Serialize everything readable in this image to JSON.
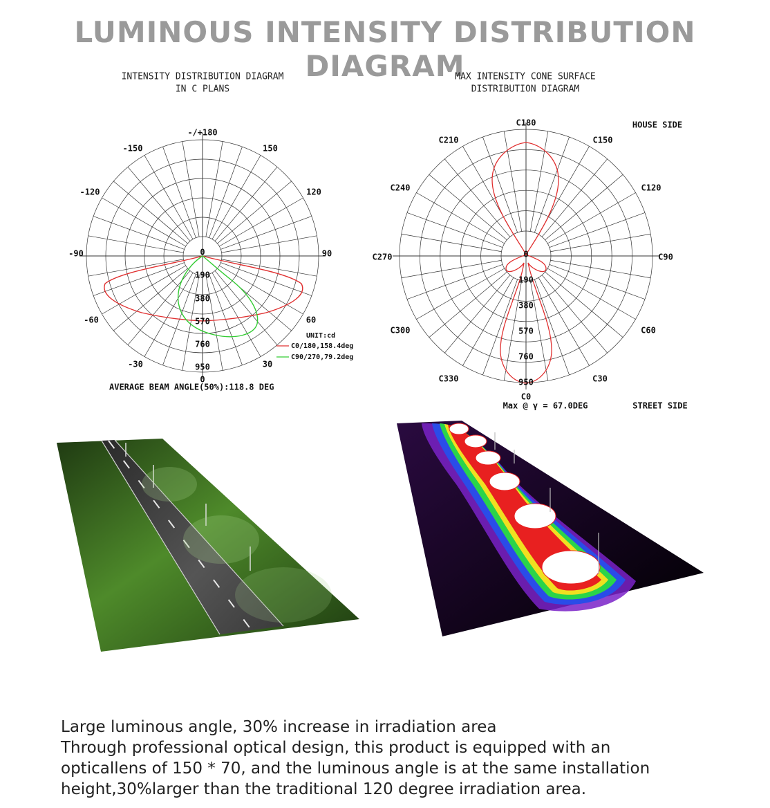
{
  "page_title": "LUMINOUS INTENSITY DISTRIBUTION DIAGRAM",
  "left_diagram": {
    "title_line1": "INTENSITY DISTRIBUTION DIAGRAM",
    "title_line2": "IN C PLANS",
    "angle_labels": {
      "top": "-/+180",
      "m150": "-150",
      "p150": "150",
      "m120": "-120",
      "p120": "120",
      "m90": "-90",
      "p90": "90",
      "m60": "-60",
      "p60": "60",
      "m30": "-30",
      "p30": "30",
      "bottom": "0"
    },
    "ring_labels": [
      "0",
      "190",
      "380",
      "570",
      "760",
      "950"
    ],
    "legend_unit": "UNIT:cd",
    "legend_c0": "C0/180,158.4deg",
    "legend_c90": "C90/270,79.2deg",
    "footer": "AVERAGE BEAM ANGLE(50%):118.8 DEG",
    "colors": {
      "c0": "#e03030",
      "c90": "#33cc33"
    }
  },
  "right_diagram": {
    "title_line1": "MAX INTENSITY CONE SURFACE",
    "title_line2": "DISTRIBUTION DIAGRAM",
    "c_labels": {
      "c180": "C180",
      "c210": "C210",
      "c150": "C150",
      "c240": "C240",
      "c120": "C120",
      "c270": "C270",
      "c90": "C90",
      "c300": "C300",
      "c60": "C60",
      "c330": "C330",
      "c30": "C30",
      "c0": "C0"
    },
    "house_side": "HOUSE SIDE",
    "street_side": "STREET SIDE",
    "ring_labels": [
      "0",
      "190",
      "380",
      "570",
      "760",
      "950"
    ],
    "max_label": "Max @ γ = 67.0DEG",
    "colors": {
      "curve": "#e03030"
    }
  },
  "caption": {
    "line1": "Large luminous angle, 30% increase in irradiation area",
    "line2": "Through professional optical design, this product is equipped with an",
    "line3": "opticallens of 150 * 70, and the luminous angle is at the same installation",
    "line4": "height,30%larger than the traditional 120 degree irradiation area."
  }
}
